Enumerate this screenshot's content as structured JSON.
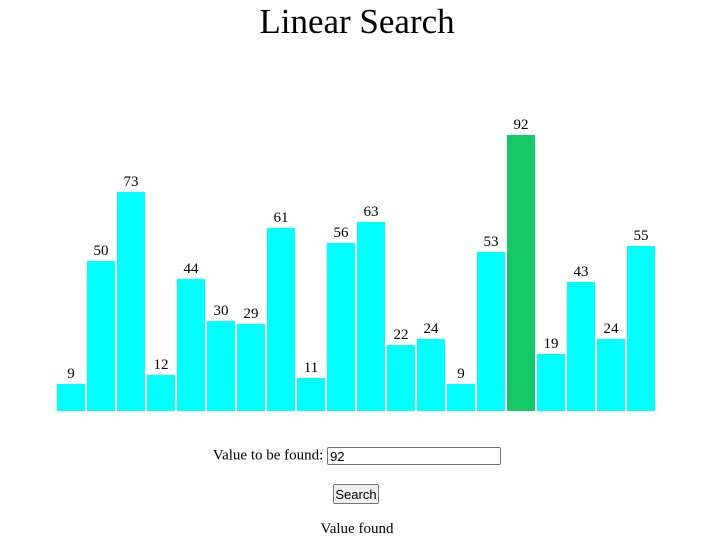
{
  "chart_data": {
    "type": "bar",
    "title": "Linear Search",
    "values": [
      9,
      50,
      73,
      12,
      44,
      30,
      29,
      61,
      11,
      56,
      63,
      22,
      24,
      9,
      53,
      92,
      19,
      43,
      24,
      55
    ],
    "colors": [
      "#00ffff",
      "#00ffff",
      "#00ffff",
      "#00ffff",
      "#00ffff",
      "#00ffff",
      "#00ffff",
      "#00ffff",
      "#00ffff",
      "#00ffff",
      "#00ffff",
      "#00ffff",
      "#00ffff",
      "#00ffff",
      "#00ffff",
      "#14c866",
      "#00ffff",
      "#00ffff",
      "#00ffff",
      "#00ffff"
    ]
  },
  "form": {
    "label": "Value to be found:",
    "input_value": "92",
    "button": "Search",
    "result": "Value found"
  }
}
